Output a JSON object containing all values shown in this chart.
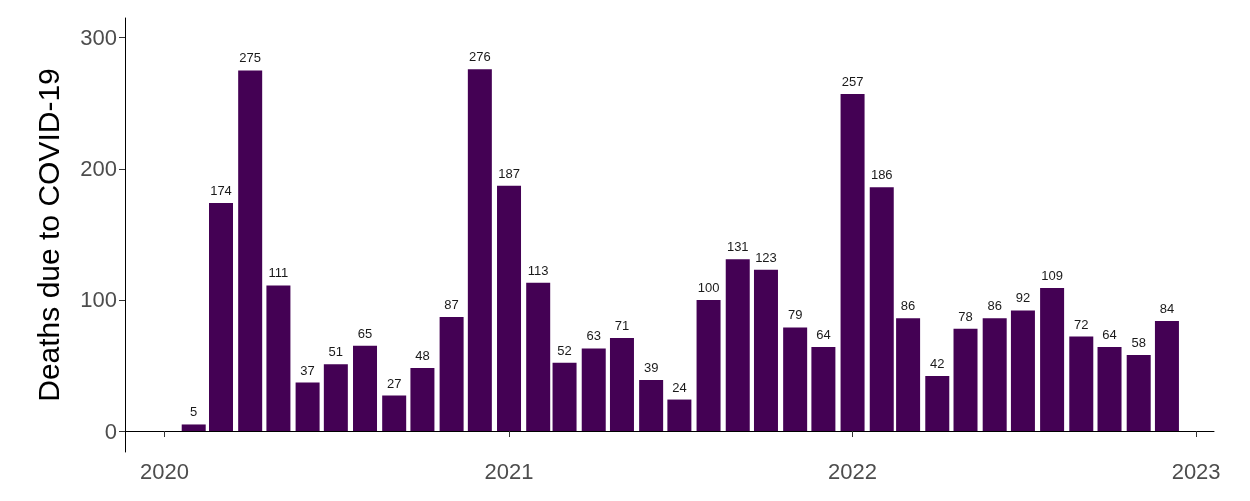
{
  "chart_data": {
    "type": "bar",
    "ylabel": "Deaths due to COVID-19",
    "x": [
      "2020-02",
      "2020-03",
      "2020-04",
      "2020-05",
      "2020-06",
      "2020-07",
      "2020-08",
      "2020-09",
      "2020-10",
      "2020-11",
      "2020-12",
      "2021-01",
      "2021-02",
      "2021-03",
      "2021-04",
      "2021-05",
      "2021-06",
      "2021-07",
      "2021-08",
      "2021-09",
      "2021-10",
      "2021-11",
      "2021-12",
      "2022-01",
      "2022-02",
      "2022-03",
      "2022-04",
      "2022-05",
      "2022-06",
      "2022-07",
      "2022-08",
      "2022-09",
      "2022-10",
      "2022-11",
      "2022-12"
    ],
    "values": [
      5,
      174,
      275,
      111,
      37,
      51,
      65,
      27,
      48,
      87,
      276,
      187,
      113,
      52,
      63,
      71,
      39,
      24,
      100,
      131,
      123,
      79,
      64,
      257,
      186,
      86,
      42,
      78,
      86,
      92,
      109,
      72,
      64,
      58,
      84
    ],
    "color": "#440154",
    "data_labels": true,
    "xlim": [
      "2019-11-20",
      "2023-01-20"
    ],
    "xticks": [
      {
        "value": "2020-01-01",
        "label": "2020"
      },
      {
        "value": "2021-01-01",
        "label": "2021"
      },
      {
        "value": "2022-01-01",
        "label": "2022"
      },
      {
        "value": "2023-01-01",
        "label": "2023"
      }
    ],
    "ylim": [
      -16,
      315
    ],
    "yticks": [
      0,
      100,
      200,
      300
    ],
    "grid": false
  }
}
